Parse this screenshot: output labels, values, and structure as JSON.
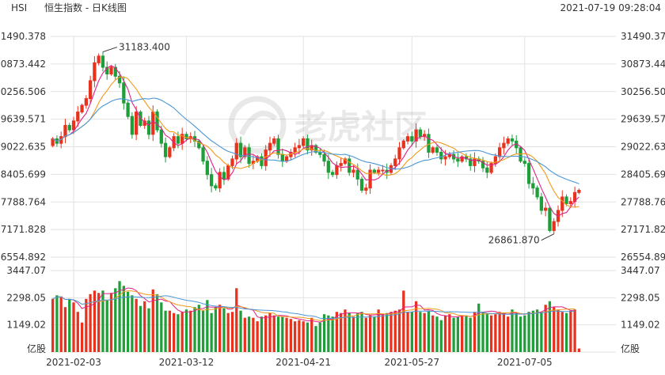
{
  "header": {
    "symbol": "HSI",
    "title": "恒生指数 - 日K线图",
    "datetime": "2021-07-19 09:28:04"
  },
  "watermark": "老虎社区",
  "colors": {
    "up": "#e8321e",
    "down": "#1f9e3a",
    "ma5": "#e0218a",
    "ma10": "#f29a1a",
    "ma20": "#4a96d6",
    "grid": "#e2e2e2",
    "text": "#333333"
  },
  "chart_data": {
    "type": "candlestick",
    "grid": true,
    "price_axis": {
      "ylim": [
        26554.892,
        31490.378
      ],
      "tick_labels": [
        "31490.378",
        "30873.442",
        "30256.506",
        "29639.571",
        "29022.635",
        "28405.699",
        "27788.764",
        "27171.828",
        "26554.892"
      ]
    },
    "volume_axis": {
      "ylim": [
        0,
        3447.07
      ],
      "tick_labels": [
        "3447.07",
        "2298.05",
        "1149.02"
      ],
      "unit_label": "亿股"
    },
    "x_tick_labels": [
      "2021-02-03",
      "2021-03-12",
      "2021-04-21",
      "2021-05-27",
      "2021-07-05"
    ],
    "annotations": [
      {
        "text": "31183.400",
        "kind": "max"
      },
      {
        "text": "26861.870",
        "kind": "min"
      }
    ],
    "close": [
      29200,
      29100,
      29250,
      29500,
      29400,
      29600,
      29800,
      29950,
      30100,
      30500,
      30900,
      31050,
      30800,
      30650,
      30800,
      30600,
      30450,
      30000,
      29700,
      29300,
      29800,
      29500,
      29600,
      29300,
      29800,
      29400,
      29100,
      28800,
      29000,
      29250,
      29100,
      29300,
      29200,
      29250,
      29150,
      29000,
      28700,
      28400,
      28150,
      28100,
      28450,
      28300,
      28600,
      28750,
      29100,
      28800,
      29000,
      28650,
      28700,
      28800,
      28600,
      28950,
      29100,
      29200,
      28850,
      28700,
      28800,
      28900,
      29000,
      29050,
      29200,
      28950,
      29050,
      28900,
      28850,
      28700,
      28450,
      28400,
      28600,
      28650,
      28750,
      28450,
      28500,
      28300,
      28050,
      28100,
      28500,
      28450,
      28500,
      28500,
      28450,
      28600,
      28750,
      29000,
      29150,
      29250,
      29150,
      29400,
      29250,
      29300,
      28900,
      29000,
      28900,
      28750,
      28800,
      28850,
      28750,
      28700,
      28800,
      28750,
      28600,
      28750,
      28700,
      28550,
      28450,
      28650,
      28800,
      29000,
      29100,
      29200,
      29150,
      29000,
      28700,
      28650,
      28200,
      28100,
      27900,
      27600,
      27650,
      27150,
      27350,
      27600,
      27900,
      27750,
      27800,
      28000,
      28050
    ],
    "volume": [
      2250,
      2400,
      2350,
      1900,
      2250,
      2100,
      1700,
      1250,
      2250,
      2450,
      2600,
      2500,
      2600,
      2200,
      2500,
      2700,
      3000,
      2800,
      2550,
      2400,
      2250,
      1950,
      2150,
      1850,
      2650,
      2450,
      2100,
      1750,
      1750,
      1650,
      1600,
      1700,
      1800,
      1750,
      1900,
      2000,
      1750,
      2200,
      1650,
      1900,
      2000,
      1850,
      1650,
      1700,
      2700,
      1750,
      1450,
      1500,
      1450,
      1300,
      1500,
      1550,
      1650,
      1550,
      1500,
      1500,
      1450,
      1400,
      1300,
      1350,
      1300,
      1250,
      1450,
      1100,
      1250,
      1600,
      1550,
      1500,
      1700,
      1650,
      1800,
      1650,
      1500,
      1650,
      1700,
      1450,
      1550,
      1500,
      1800,
      1600,
      1650,
      1700,
      1750,
      1800,
      2600,
      1700,
      1700,
      2150,
      1700,
      1650,
      1750,
      1550,
      1500,
      1350,
      1550,
      1600,
      1450,
      1500,
      1550,
      1550,
      1450,
      1700,
      2050,
      1700,
      1650,
      1550,
      1600,
      1700,
      1650,
      1500,
      1800,
      1650,
      1500,
      1550,
      1700,
      1750,
      1800,
      1700,
      2000,
      2150,
      1900,
      1800,
      1700,
      1650,
      1750,
      1800,
      150
    ],
    "ma_lines": [
      "MA5",
      "MA10",
      "MA20"
    ]
  }
}
